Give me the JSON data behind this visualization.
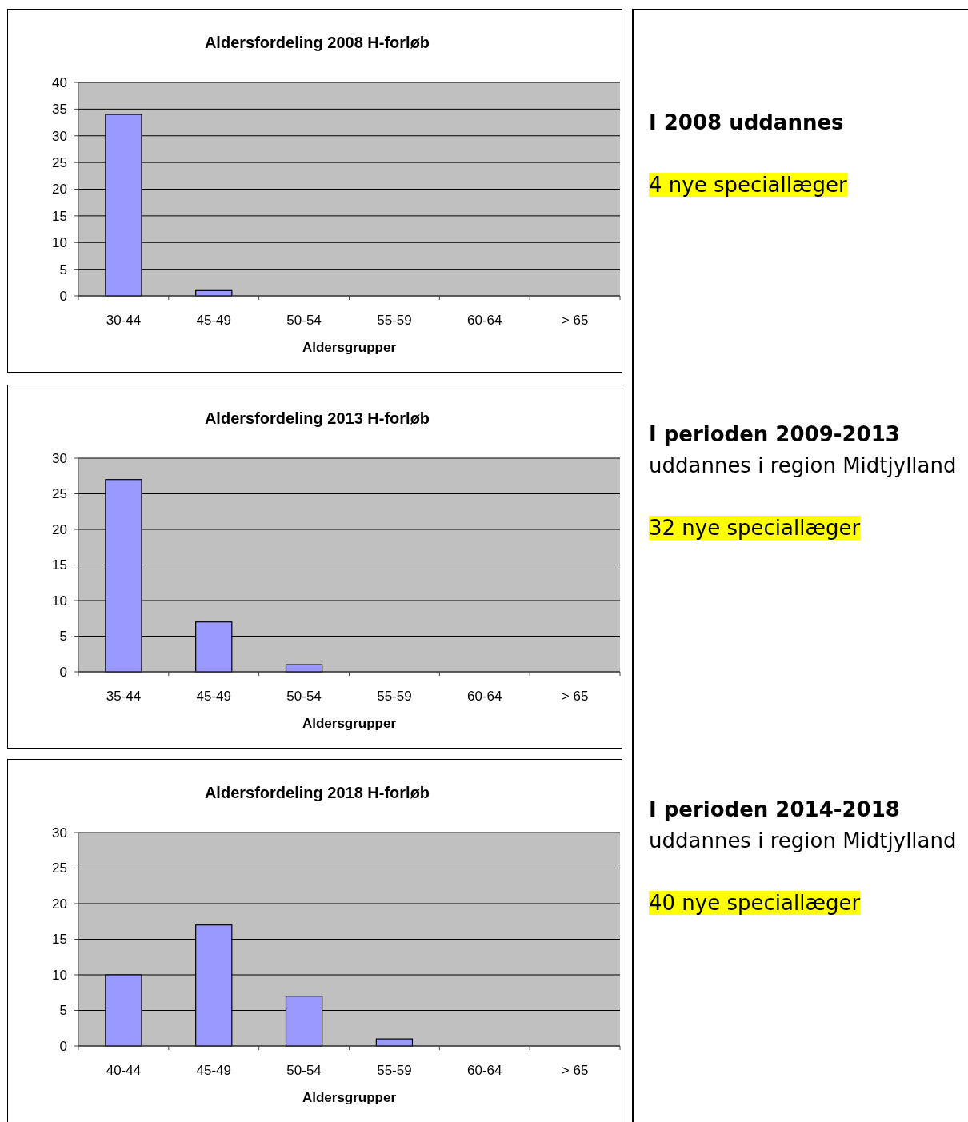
{
  "chart_data": [
    {
      "type": "bar",
      "title": "Aldersfordeling 2008  H-forløb",
      "xlabel": "Aldersgrupper",
      "categories": [
        "30-44",
        "45-49",
        "50-54",
        "55-59",
        "60-64",
        "> 65"
      ],
      "values": [
        34,
        1,
        0,
        0,
        0,
        0
      ],
      "color": "#9999ff",
      "ylim": [
        0,
        40
      ],
      "yticks": [
        0,
        5,
        10,
        15,
        20,
        25,
        30,
        35,
        40
      ],
      "grid": "y"
    },
    {
      "type": "other",
      "title": "I 2008 uddannes",
      "annotations": [
        "4 nye speciallæger"
      ]
    },
    {
      "type": "bar",
      "title": "Aldersfordeling 2013  H-forløb",
      "xlabel": "Aldersgrupper",
      "categories": [
        "35-44",
        "45-49",
        "50-54",
        "55-59",
        "60-64",
        "> 65"
      ],
      "values": [
        27,
        7,
        1,
        0,
        0,
        0
      ],
      "color": "#9999ff",
      "ylim": [
        0,
        30
      ],
      "yticks": [
        0,
        5,
        10,
        15,
        20,
        25,
        30
      ],
      "grid": "y"
    },
    {
      "type": "other",
      "title": "I perioden 2009-2013",
      "subtitle": "uddannes i region Midtjylland",
      "annotations": [
        "32 nye speciallæger"
      ]
    },
    {
      "type": "bar",
      "title": "Aldersfordeling 2018  H-forløb",
      "xlabel": "Aldersgrupper",
      "categories": [
        "40-44",
        "45-49",
        "50-54",
        "55-59",
        "60-64",
        "> 65"
      ],
      "values": [
        10,
        17,
        7,
        1,
        0,
        0
      ],
      "color": "#9999ff",
      "ylim": [
        0,
        30
      ],
      "yticks": [
        0,
        5,
        10,
        15,
        20,
        25,
        30
      ],
      "grid": "y"
    },
    {
      "type": "other",
      "title": "I perioden 2014-2018",
      "subtitle": "uddannes i region Midtjylland",
      "annotations": [
        "40 nye speciallæger"
      ]
    }
  ]
}
